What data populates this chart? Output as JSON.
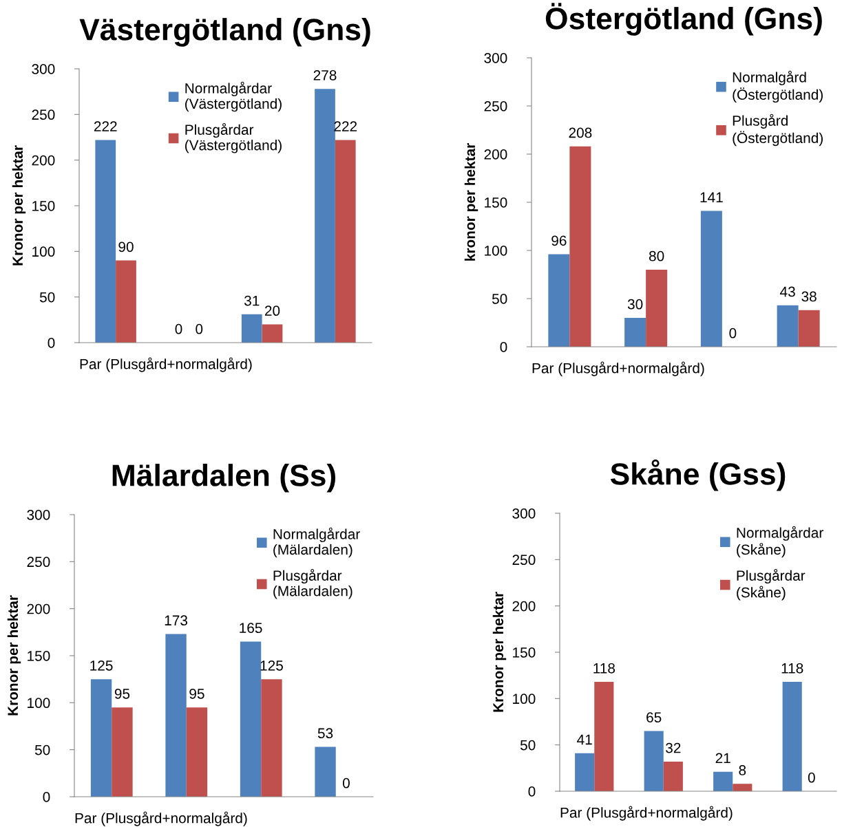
{
  "chart_data": [
    {
      "type": "bar",
      "title": "Västergötland (Gns)",
      "xlabel": "Par (Plusgård+normalgård)",
      "ylabel": "Kronor per hektar",
      "categories": [
        null,
        null,
        null,
        null
      ],
      "ylim": [
        0,
        300
      ],
      "yticks": [
        0,
        50,
        100,
        150,
        200,
        250,
        300
      ],
      "grid": false,
      "legend": "top",
      "data_labels": true,
      "series": [
        {
          "name": "Normalgårdar (Västergötland)",
          "color": "#4f81bd",
          "values": [
            222,
            0,
            31,
            278
          ]
        },
        {
          "name": "Plusgårdar (Västergötland)",
          "color": "#c0504d",
          "values": [
            90,
            0,
            20,
            222
          ]
        }
      ]
    },
    {
      "type": "bar",
      "title": "Östergötland (Gns)",
      "xlabel": "Par (Plusgård+normalgård)",
      "ylabel": "kronor per hektar",
      "categories": [
        null,
        null,
        null,
        null
      ],
      "ylim": [
        0,
        300
      ],
      "yticks": [
        0,
        50,
        100,
        150,
        200,
        250,
        300
      ],
      "grid": false,
      "legend": "top right",
      "data_labels": true,
      "series": [
        {
          "name": "Normalgård (Östergötland)",
          "color": "#4f81bd",
          "values": [
            96,
            30,
            141,
            43
          ]
        },
        {
          "name": "Plusgård (Östergötland)",
          "color": "#c0504d",
          "values": [
            208,
            80,
            0,
            38
          ]
        }
      ]
    },
    {
      "type": "bar",
      "title": "Mälardalen (Ss)",
      "xlabel": "Par (Plusgård+normalgård)",
      "ylabel": "Kronor per hektar",
      "categories": [
        null,
        null,
        null,
        null
      ],
      "ylim": [
        0,
        300
      ],
      "yticks": [
        0,
        50,
        100,
        150,
        200,
        250,
        300
      ],
      "grid": false,
      "legend": "top right",
      "data_labels": true,
      "series": [
        {
          "name": "Normalgårdar (Mälardalen)",
          "color": "#4f81bd",
          "values": [
            125,
            173,
            165,
            53
          ]
        },
        {
          "name": "Plusgårdar (Mälardalen)",
          "color": "#c0504d",
          "values": [
            95,
            95,
            125,
            0
          ]
        }
      ]
    },
    {
      "type": "bar",
      "title": "Skåne (Gss)",
      "xlabel": "Par (Plusgård+normalgård)",
      "ylabel": "Kronor per hektar",
      "categories": [
        null,
        null,
        null,
        null
      ],
      "ylim": [
        0,
        300
      ],
      "yticks": [
        0,
        50,
        100,
        150,
        200,
        250,
        300
      ],
      "grid": false,
      "legend": "top right",
      "data_labels": true,
      "series": [
        {
          "name": "Normalgårdar (Skåne)",
          "color": "#4f81bd",
          "values": [
            41,
            65,
            21,
            118
          ]
        },
        {
          "name": "Plusgårdar (Skåne)",
          "color": "#c0504d",
          "values": [
            118,
            32,
            8,
            0
          ]
        }
      ]
    }
  ]
}
